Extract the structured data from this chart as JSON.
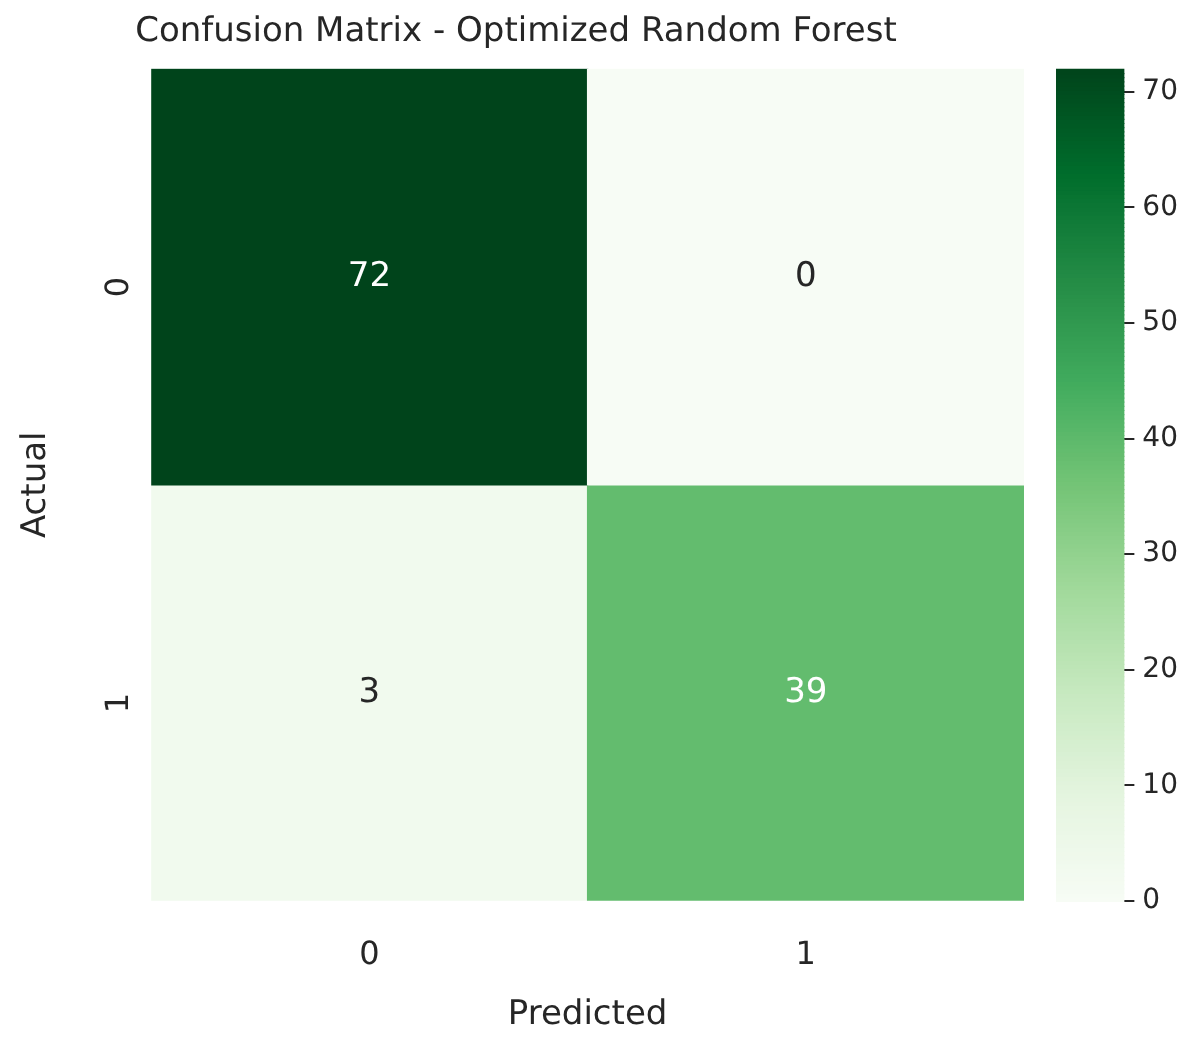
{
  "chart_data": {
    "type": "heatmap",
    "title": "Confusion Matrix - Optimized Random Forest",
    "xlabel": "Predicted",
    "ylabel": "Actual",
    "categories": [
      "0",
      "1"
    ],
    "y_categories": [
      "0",
      "1"
    ],
    "cells": [
      [
        72,
        0
      ],
      [
        3,
        39
      ]
    ],
    "data_labels": true,
    "clim": [
      0,
      72
    ],
    "cticks": [
      0,
      10,
      20,
      30,
      40,
      50,
      60,
      70
    ]
  }
}
